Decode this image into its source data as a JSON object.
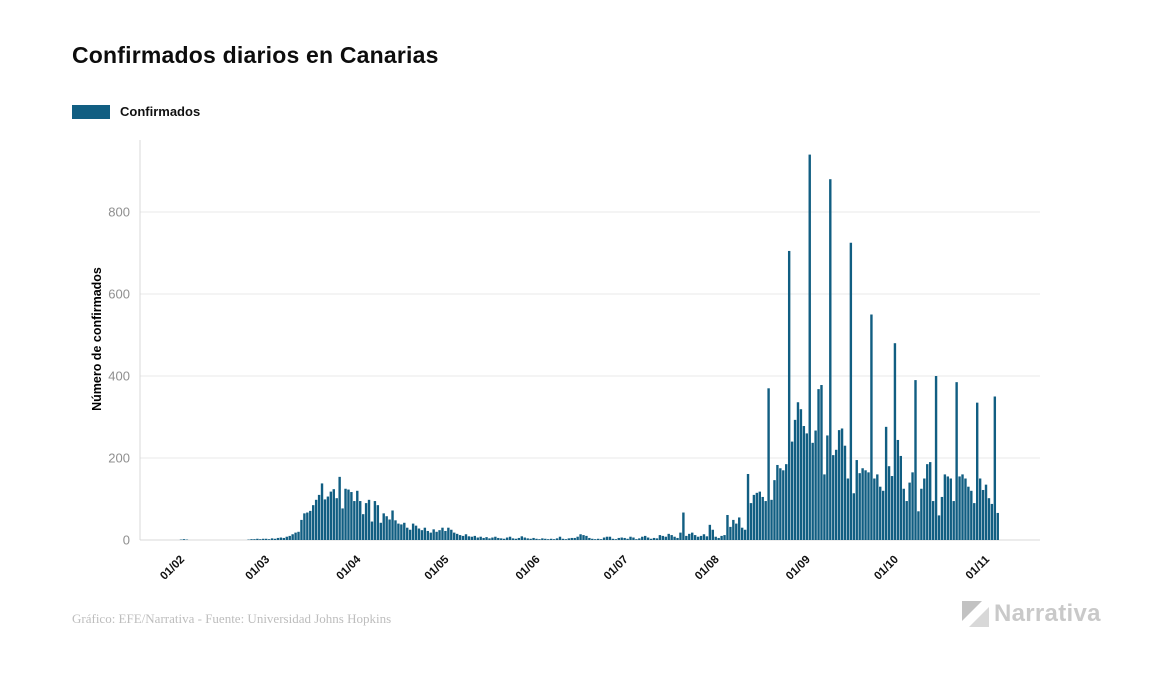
{
  "header": {
    "title": "Confirmados diarios en Canarias"
  },
  "legend": {
    "label": "Confirmados"
  },
  "footer": {
    "credit": "Gráfico: EFE/Narrativa - Fuente: Universidad Johns Hopkins"
  },
  "logo": {
    "text": "Narrativa"
  },
  "colors": {
    "bar": "#115e82",
    "grid": "#e8e8e8",
    "axis": "#d9d9d9",
    "ytick_text": "#8f8f8f",
    "xtick_text": "#111111",
    "title_text": "#0d0d0d",
    "credit_text": "#bdbdbd",
    "logo_gray": "#c9c9c9"
  },
  "chart_data": {
    "type": "bar",
    "title": "Confirmados diarios en Canarias",
    "xlabel": "",
    "ylabel": "Número de confirmados",
    "series_name": "Confirmados",
    "frequency": "daily",
    "start_date": "01/02",
    "end_date": "05/11",
    "ylim": [
      0,
      975
    ],
    "grid": "horizontal",
    "legend_position": "top-left",
    "bar_color": "#115e82",
    "grid_color": "#e8e8e8",
    "axis_color": "#d9d9d9",
    "ytick_color": "#8f8f8f",
    "xtick_color": "#111111",
    "yticks": [
      0,
      200,
      400,
      600,
      800
    ],
    "xticks": [
      {
        "label": "01/02",
        "day": 0
      },
      {
        "label": "01/03",
        "day": 29
      },
      {
        "label": "01/04",
        "day": 60
      },
      {
        "label": "01/05",
        "day": 90
      },
      {
        "label": "01/06",
        "day": 121
      },
      {
        "label": "01/07",
        "day": 151
      },
      {
        "label": "01/08",
        "day": 182
      },
      {
        "label": "01/09",
        "day": 213
      },
      {
        "label": "01/10",
        "day": 243
      },
      {
        "label": "01/11",
        "day": 274
      }
    ],
    "values": [
      1,
      2,
      1,
      0,
      0,
      0,
      0,
      0,
      0,
      0,
      0,
      0,
      0,
      0,
      0,
      0,
      0,
      0,
      0,
      0,
      0,
      0,
      0,
      1,
      2,
      2,
      3,
      2,
      3,
      3,
      2,
      4,
      3,
      5,
      6,
      5,
      8,
      10,
      14,
      18,
      20,
      49,
      65,
      67,
      71,
      85,
      98,
      110,
      138,
      99,
      106,
      118,
      124,
      102,
      154,
      77,
      125,
      123,
      117,
      95,
      120,
      95,
      63,
      90,
      98,
      45,
      95,
      85,
      42,
      65,
      58,
      50,
      72,
      48,
      40,
      38,
      42,
      30,
      25,
      40,
      35,
      28,
      24,
      30,
      22,
      18,
      26,
      20,
      24,
      30,
      22,
      30,
      25,
      18,
      15,
      12,
      10,
      14,
      9,
      8,
      10,
      6,
      8,
      5,
      7,
      4,
      6,
      8,
      5,
      4,
      3,
      6,
      8,
      4,
      3,
      5,
      9,
      6,
      4,
      3,
      5,
      3,
      2,
      4,
      3,
      2,
      3,
      2,
      4,
      8,
      3,
      2,
      4,
      5,
      5,
      8,
      14,
      12,
      10,
      5,
      3,
      2,
      3,
      2,
      6,
      8,
      8,
      3,
      2,
      5,
      6,
      5,
      3,
      8,
      6,
      2,
      4,
      8,
      10,
      6,
      3,
      5,
      4,
      12,
      10,
      8,
      15,
      12,
      8,
      5,
      18,
      67,
      10,
      15,
      18,
      12,
      8,
      10,
      14,
      9,
      37,
      25,
      8,
      5,
      10,
      12,
      61,
      32,
      49,
      40,
      55,
      30,
      25,
      161,
      90,
      110,
      115,
      118,
      105,
      95,
      370,
      98,
      146,
      183,
      175,
      170,
      185,
      705,
      240,
      293,
      336,
      319,
      278,
      260,
      940,
      237,
      267,
      368,
      378,
      160,
      255,
      880,
      207,
      220,
      268,
      272,
      230,
      150,
      725,
      114,
      195,
      163,
      175,
      170,
      165,
      550,
      150,
      160,
      130,
      120,
      276,
      180,
      156,
      480,
      244,
      205,
      125,
      95,
      140,
      165,
      390,
      70,
      125,
      150,
      185,
      190,
      95,
      400,
      60,
      105,
      160,
      155,
      150,
      95,
      385,
      155,
      160,
      150,
      130,
      120,
      90,
      335,
      150,
      122,
      135,
      102,
      88,
      350,
      66
    ]
  }
}
